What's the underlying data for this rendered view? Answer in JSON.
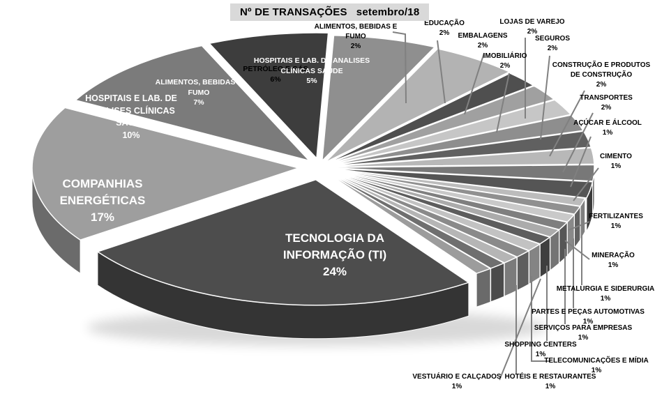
{
  "chart_data": {
    "type": "pie",
    "title": "Nº DE TRANSAÇÕES   setembro/18",
    "unit": "%",
    "style_note": "3D exploded grayscale pie chart",
    "slices": [
      {
        "name": "TECNOLOGIA DA INFORMAÇÃO (TI)",
        "value": 24,
        "color": "#4d4d4d",
        "label_color": "#ffffff"
      },
      {
        "name": "COMPANHIAS ENERGÉTICAS",
        "value": 17,
        "color": "#9e9e9e",
        "label_color": "#ffffff"
      },
      {
        "name": "HOSPITAIS E LAB. DE ANALISES CLÍNICAS SAÚDE",
        "value": 10,
        "color": "#7b7b7b",
        "label_color": "#ffffff"
      },
      {
        "name": "ALIMENTOS, BEBIDAS E FUMO",
        "value": 7,
        "color": "#3d3d3d",
        "label_color": "#ffffff"
      },
      {
        "name": "PETRÓLEO E GÁS",
        "value": 6,
        "color": "#8f8f8f",
        "label_color": "#000000"
      },
      {
        "name": "HOSPITAIS E LAB. DE ANALISES CLÍNICAS SAÚDE",
        "value": 5,
        "color": "#b3b3b3",
        "label_color": "#ffffff"
      },
      {
        "name": "ALIMENTOS, BEBIDAS E FUMO",
        "value": 2,
        "color": "#4f4f4f",
        "label_color": "#000000"
      },
      {
        "name": "EDUCAÇÃO",
        "value": 2,
        "color": "#a0a0a0",
        "label_color": "#000000"
      },
      {
        "name": "EMBALAGENS",
        "value": 2,
        "color": "#c6c6c6",
        "label_color": "#000000"
      },
      {
        "name": "LOJAS DE VAREJO",
        "value": 2,
        "color": "#8e8e8e",
        "label_color": "#000000"
      },
      {
        "name": "IMOBILIÁRIO",
        "value": 2,
        "color": "#606060",
        "label_color": "#000000"
      },
      {
        "name": "SEGUROS",
        "value": 2,
        "color": "#b8b8b8",
        "label_color": "#000000"
      },
      {
        "name": "CONSTRUÇÃO E PRODUTOS DE CONSTRUÇÃO",
        "value": 2,
        "color": "#787878",
        "label_color": "#000000"
      },
      {
        "name": "TRANSPORTES",
        "value": 2,
        "color": "#555555",
        "label_color": "#000000"
      },
      {
        "name": "AÇÚCAR E ÁLCOOL",
        "value": 1,
        "color": "#bcbcbc",
        "label_color": "#000000"
      },
      {
        "name": "CIMENTO",
        "value": 1,
        "color": "#909090",
        "label_color": "#000000"
      },
      {
        "name": "FERTILIZANTES",
        "value": 1,
        "color": "#c9c9c9",
        "label_color": "#000000"
      },
      {
        "name": "MINERAÇÃO",
        "value": 1,
        "color": "#7f7f7f",
        "label_color": "#000000"
      },
      {
        "name": "METALURGIA E SIDERURGIA",
        "value": 1,
        "color": "#ababab",
        "label_color": "#000000"
      },
      {
        "name": "PARTES E PEÇAS AUTOMOTIVAS",
        "value": 1,
        "color": "#5d5d5d",
        "label_color": "#000000"
      },
      {
        "name": "SERVIÇOS PARA EMPRESAS",
        "value": 1,
        "color": "#c2c2c2",
        "label_color": "#000000"
      },
      {
        "name": "SHOPPING CENTERS",
        "value": 1,
        "color": "#8a8a8a",
        "label_color": "#000000"
      },
      {
        "name": "TELECOMUNICAÇÕES E MÍDIA",
        "value": 1,
        "color": "#b5b5b5",
        "label_color": "#000000"
      },
      {
        "name": "HOTÉIS E RESTAURANTES",
        "value": 1,
        "color": "#6f6f6f",
        "label_color": "#000000"
      },
      {
        "name": "VESTUÁRIO E CALÇADOS",
        "value": 1,
        "color": "#9c9c9c",
        "label_color": "#000000"
      }
    ],
    "layout_hints": {
      "background": "#ffffff",
      "title_bg": "#d9d9d9",
      "leader_line_color": "#808080",
      "start_angle_deg": 55,
      "legend": "none; large slices labeled inside in white, small slices labeled outside with gray leader lines"
    }
  }
}
